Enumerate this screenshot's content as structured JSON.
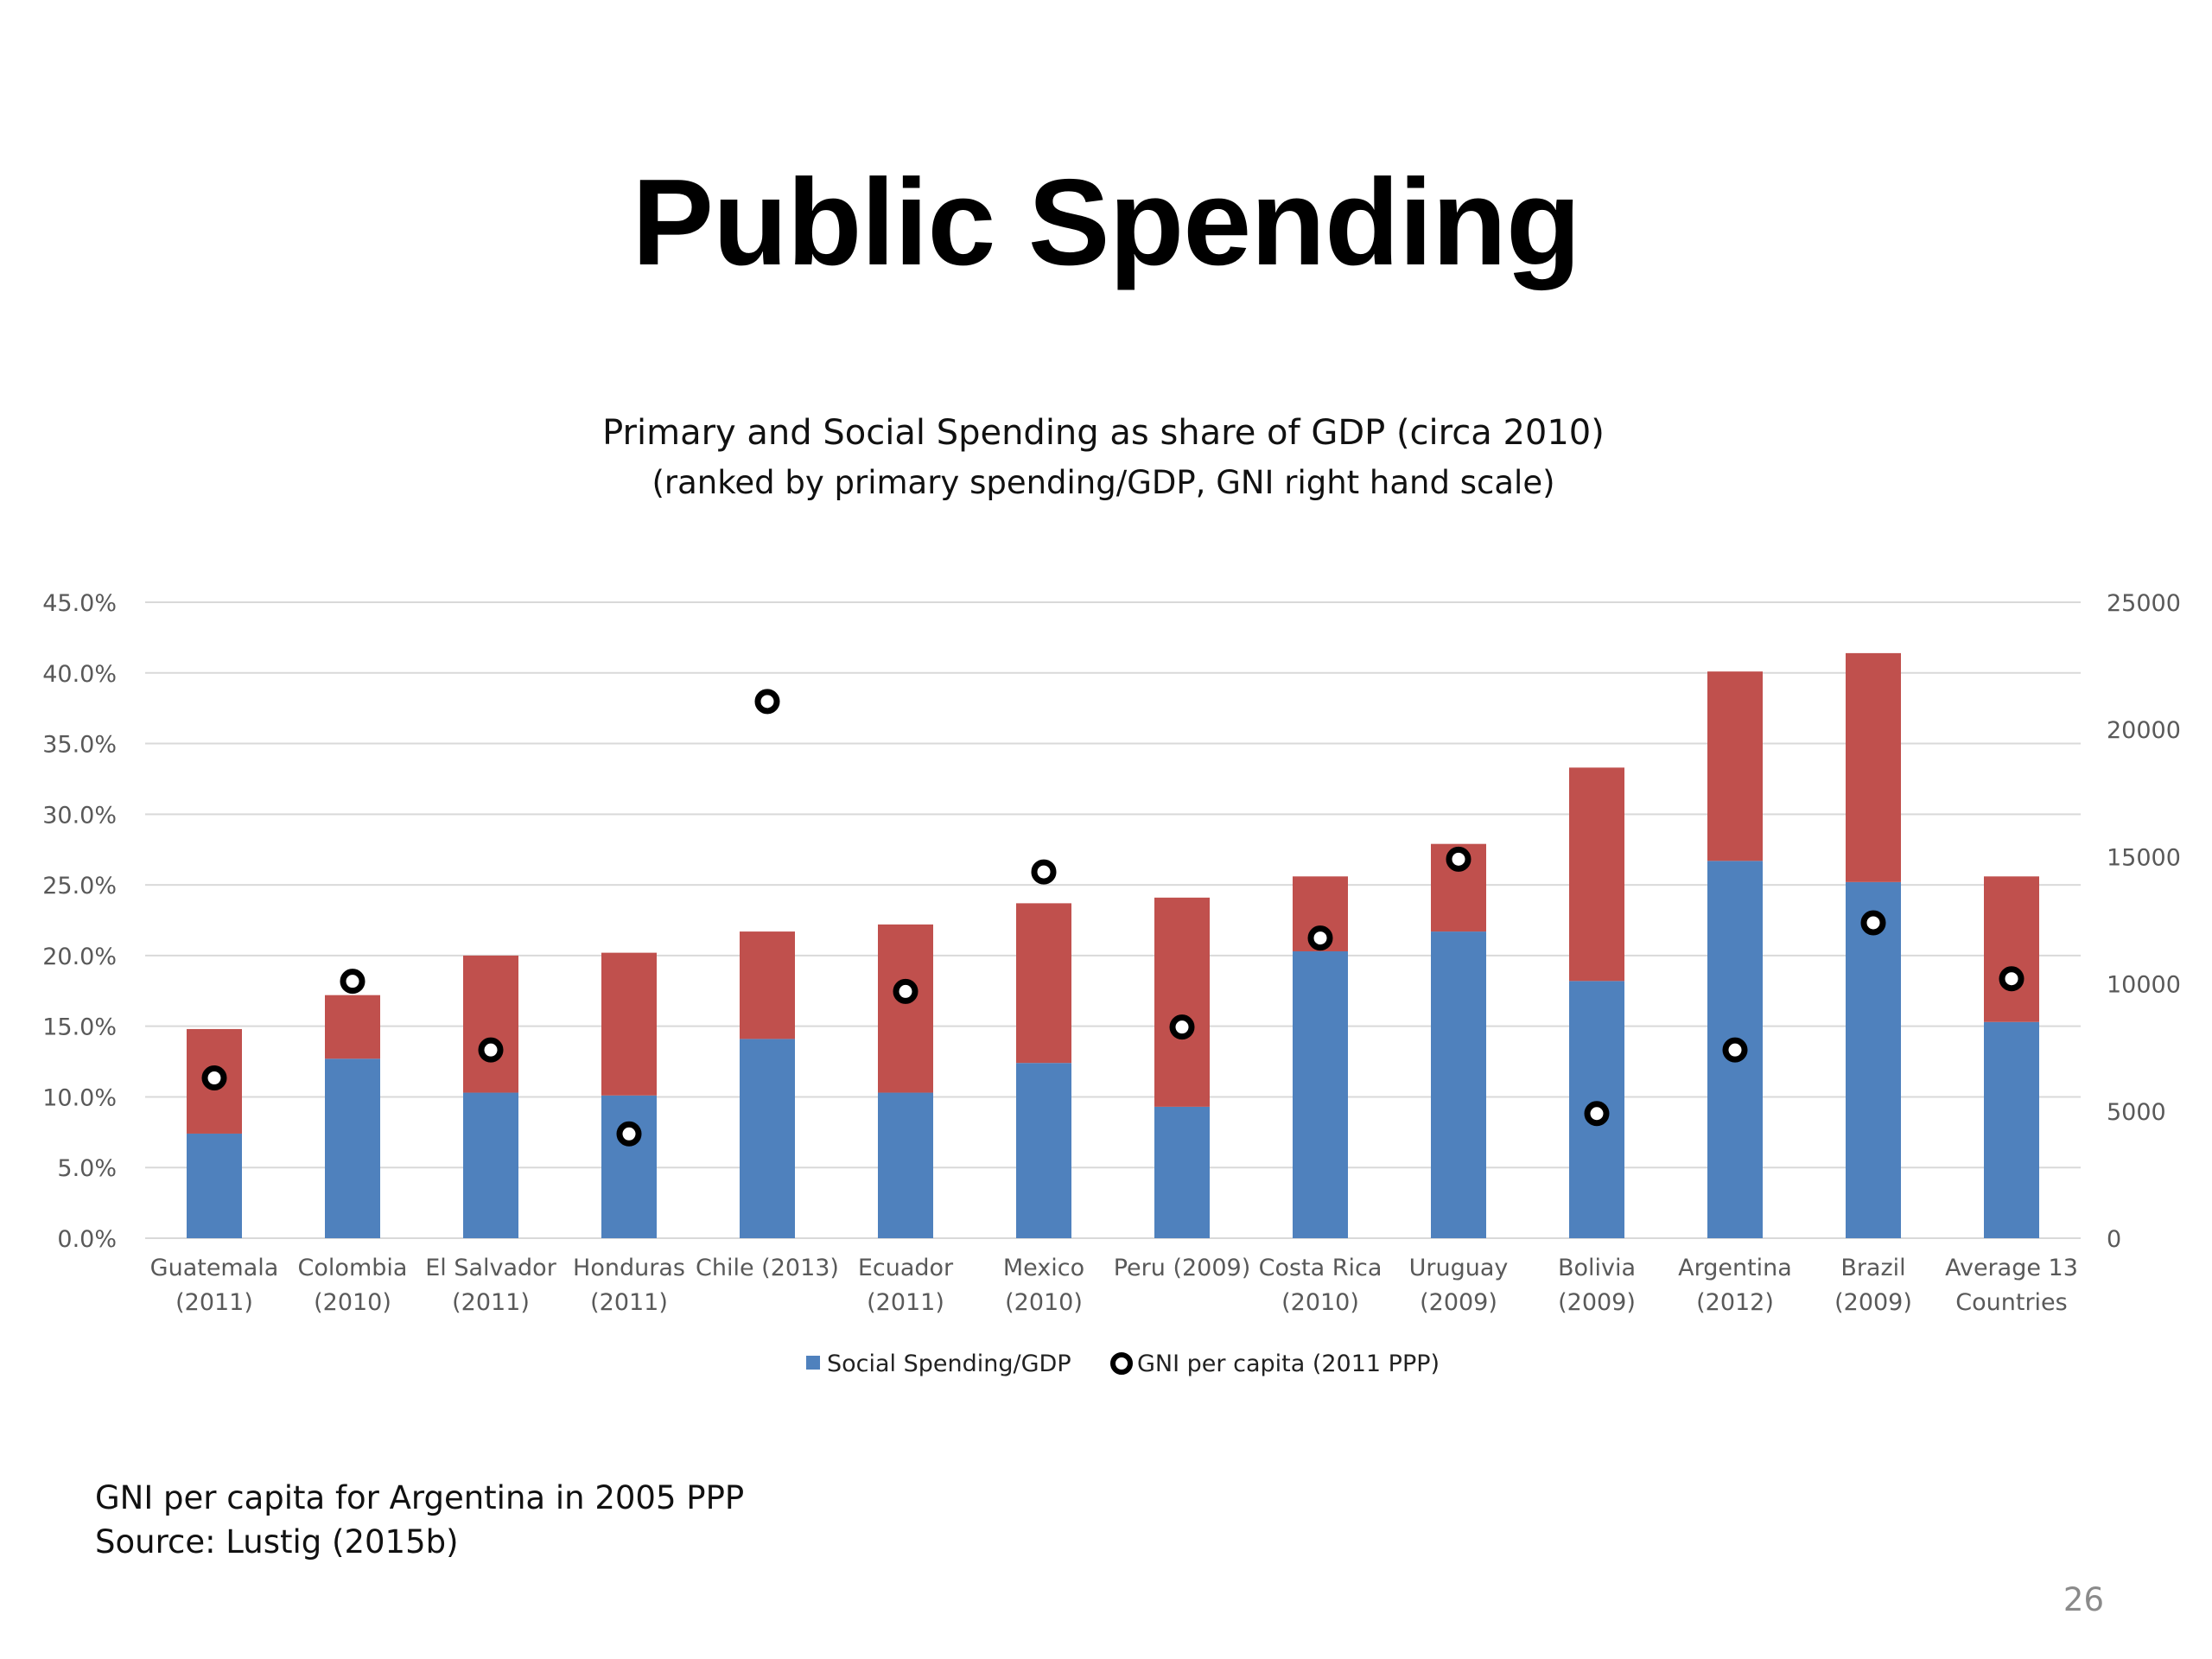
{
  "slide": {
    "title": "Public Spending",
    "notes": [
      "GNI per capita for Argentina in 2005 PPP",
      "Source: Lustig (2015b)"
    ],
    "page_number": "26"
  },
  "chart_data": {
    "type": "bar",
    "stacked": true,
    "title": "Primary and Social Spending as share of GDP (circa 2010)",
    "subtitle": "(ranked by primary spending/GDP, GNI right hand scale)",
    "categories": [
      [
        "Guatemala",
        "(2011)"
      ],
      [
        "Colombia",
        "(2010)"
      ],
      [
        "El Salvador",
        "(2011)"
      ],
      [
        "Honduras",
        "(2011)"
      ],
      [
        "Chile (2013)"
      ],
      [
        "Ecuador",
        "(2011)"
      ],
      [
        "Mexico",
        "(2010)"
      ],
      [
        "Peru (2009)"
      ],
      [
        "Costa Rica",
        "(2010)"
      ],
      [
        "Uruguay",
        "(2009)"
      ],
      [
        "Bolivia",
        "(2009)"
      ],
      [
        "Argentina",
        "(2012)"
      ],
      [
        "Brazil",
        "(2009)"
      ],
      [
        "Average 13",
        "Countries"
      ]
    ],
    "series": [
      {
        "name": "Social Spending/GDP",
        "axis": "left",
        "kind": "bar",
        "color": "#4f81bd",
        "values": [
          7.4,
          12.7,
          10.3,
          10.1,
          14.1,
          10.3,
          12.4,
          9.3,
          20.3,
          21.7,
          18.2,
          26.7,
          25.2,
          15.3
        ]
      },
      {
        "name": "",
        "axis": "left",
        "kind": "bar",
        "color": "#c0504d",
        "values": [
          7.4,
          4.5,
          9.7,
          10.1,
          7.6,
          11.9,
          11.3,
          14.8,
          5.3,
          6.2,
          15.1,
          13.4,
          16.2,
          10.3
        ]
      },
      {
        "name": "GNI per capita (2011 PPP)",
        "axis": "right",
        "kind": "scatter",
        "marker": "ring",
        "values": [
          6300,
          10100,
          7400,
          4100,
          21100,
          9700,
          14400,
          8300,
          11800,
          14900,
          4900,
          7400,
          12400,
          10200
        ]
      }
    ],
    "y_left": {
      "ylim": [
        0,
        45
      ],
      "ticks": [
        "0.0%",
        "5.0%",
        "10.0%",
        "15.0%",
        "20.0%",
        "25.0%",
        "30.0%",
        "35.0%",
        "40.0%",
        "45.0%"
      ]
    },
    "y_right": {
      "ylim": [
        0,
        25000
      ],
      "ticks": [
        "0",
        "5000",
        "10000",
        "15000",
        "20000",
        "25000"
      ]
    },
    "grid": true,
    "legend_position": "bottom",
    "colors": {
      "grid": "#d9d9d9",
      "axis_text": "#595959",
      "marker_fill": "#ffffff",
      "marker_edge": "#000000"
    }
  }
}
